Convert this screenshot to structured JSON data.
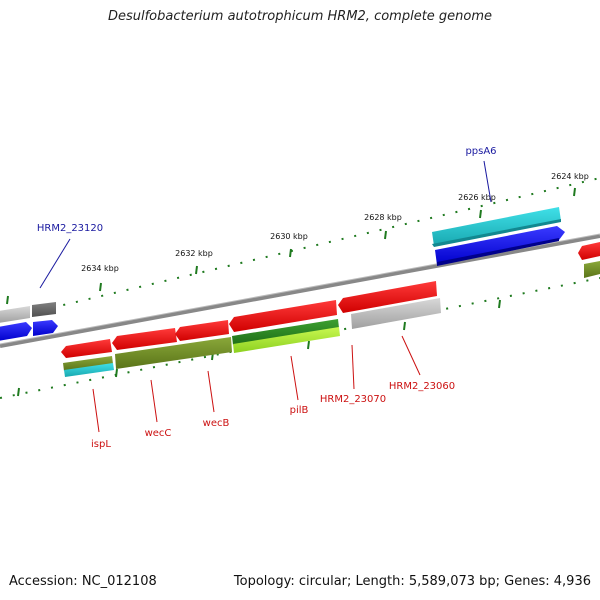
{
  "title": "Desulfobacterium autotrophicum HRM2, complete genome",
  "footer": {
    "accession": "Accession: NC_012108",
    "summary": "Topology: circular; Length: 5,589,073 bp; Genes: 4,936"
  },
  "colors": {
    "cds_forward": "#0000ee",
    "cds_reverse": "#ee0000",
    "gray_feature": "#b8b8b8",
    "olive": "#6b8e23",
    "cyan": "#22c8d0",
    "green": "#2e8b22",
    "lime": "#a8e830",
    "backbone": "#808080",
    "tick": "#1f7a1f",
    "label_blue": "#1a1aa0",
    "label_red": "#cc1111"
  },
  "scale_labels": [
    "2634 kbp",
    "2632 kbp",
    "2630 kbp",
    "2628 kbp",
    "2626 kbp",
    "2624 kbp"
  ],
  "gene_labels": {
    "top": [
      "HRM2_23120",
      "ppsA6"
    ],
    "bottom": [
      "ispL",
      "wecC",
      "wecB",
      "pilB",
      "HRM2_23070",
      "HRM2_23060"
    ]
  }
}
